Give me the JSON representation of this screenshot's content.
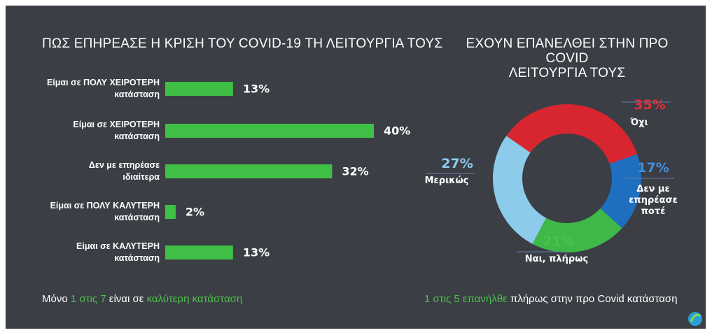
{
  "chart_data": [
    {
      "type": "bar",
      "title": "ΠΩΣ ΕΠΗΡΕΑΣΕ Η ΚΡΙΣΗ ΤΟΥ COVID-19 ΤΗ ΛΕΙΤΟΥΡΓΙΑ ΤΟΥΣ",
      "categories": [
        "Είμαι σε ΠΟΛΥ ΧΕΙΡΟΤΕΡΗ\nκατάσταση",
        "Είμαι σε ΧΕΙΡΟΤΕΡΗ\nκατάσταση",
        "Δεν με επηρέασε\nιδιαίτερα",
        "Είμαι σε ΠΟΛΥ ΚΑΛΥΤΕΡΗ\nκατάσταση",
        "Είμαι σε ΚΑΛΥΤΕΡΗ\nκατάσταση"
      ],
      "values": [
        13,
        40,
        32,
        2,
        13
      ],
      "value_labels": [
        "13%",
        "40%",
        "32%",
        "2%",
        "13%"
      ],
      "color": "#3fbf46",
      "annotation": [
        {
          "text": "Μόνο ",
          "highlight": false
        },
        {
          "text": "1 στις 7",
          "highlight": true
        },
        {
          "text": " είναι σε ",
          "highlight": false
        },
        {
          "text": "καλύτερη κατάσταση",
          "highlight": true
        }
      ]
    },
    {
      "type": "pie",
      "title": "ΕΧΟΥΝ ΕΠΑΝΕΛΘΕΙ ΣΤΗΝ ΠΡΟ COVID\nΛΕΙΤΟΥΡΓΙΑ ΤΟΥΣ",
      "categories": [
        "Όχι",
        "Δεν με\nεπηρέασε\nποτέ",
        "Ναι, πλήρως",
        "Μερικώς"
      ],
      "values": [
        35,
        17,
        21,
        27
      ],
      "value_labels": [
        "35%",
        "17%",
        "21%",
        "27%"
      ],
      "colors": [
        "#d7262f",
        "#1f6fc0",
        "#3fb847",
        "#8ccbea"
      ],
      "label_colors": [
        "#e0303a",
        "#3f8fdc",
        "#4cc24a",
        "#8ccbea"
      ],
      "annotation": [
        {
          "text": "1 στις 5 επανήλθε",
          "highlight": true
        },
        {
          "text": " πλήρως στην προ Covid κατάσταση",
          "highlight": false
        }
      ]
    }
  ]
}
